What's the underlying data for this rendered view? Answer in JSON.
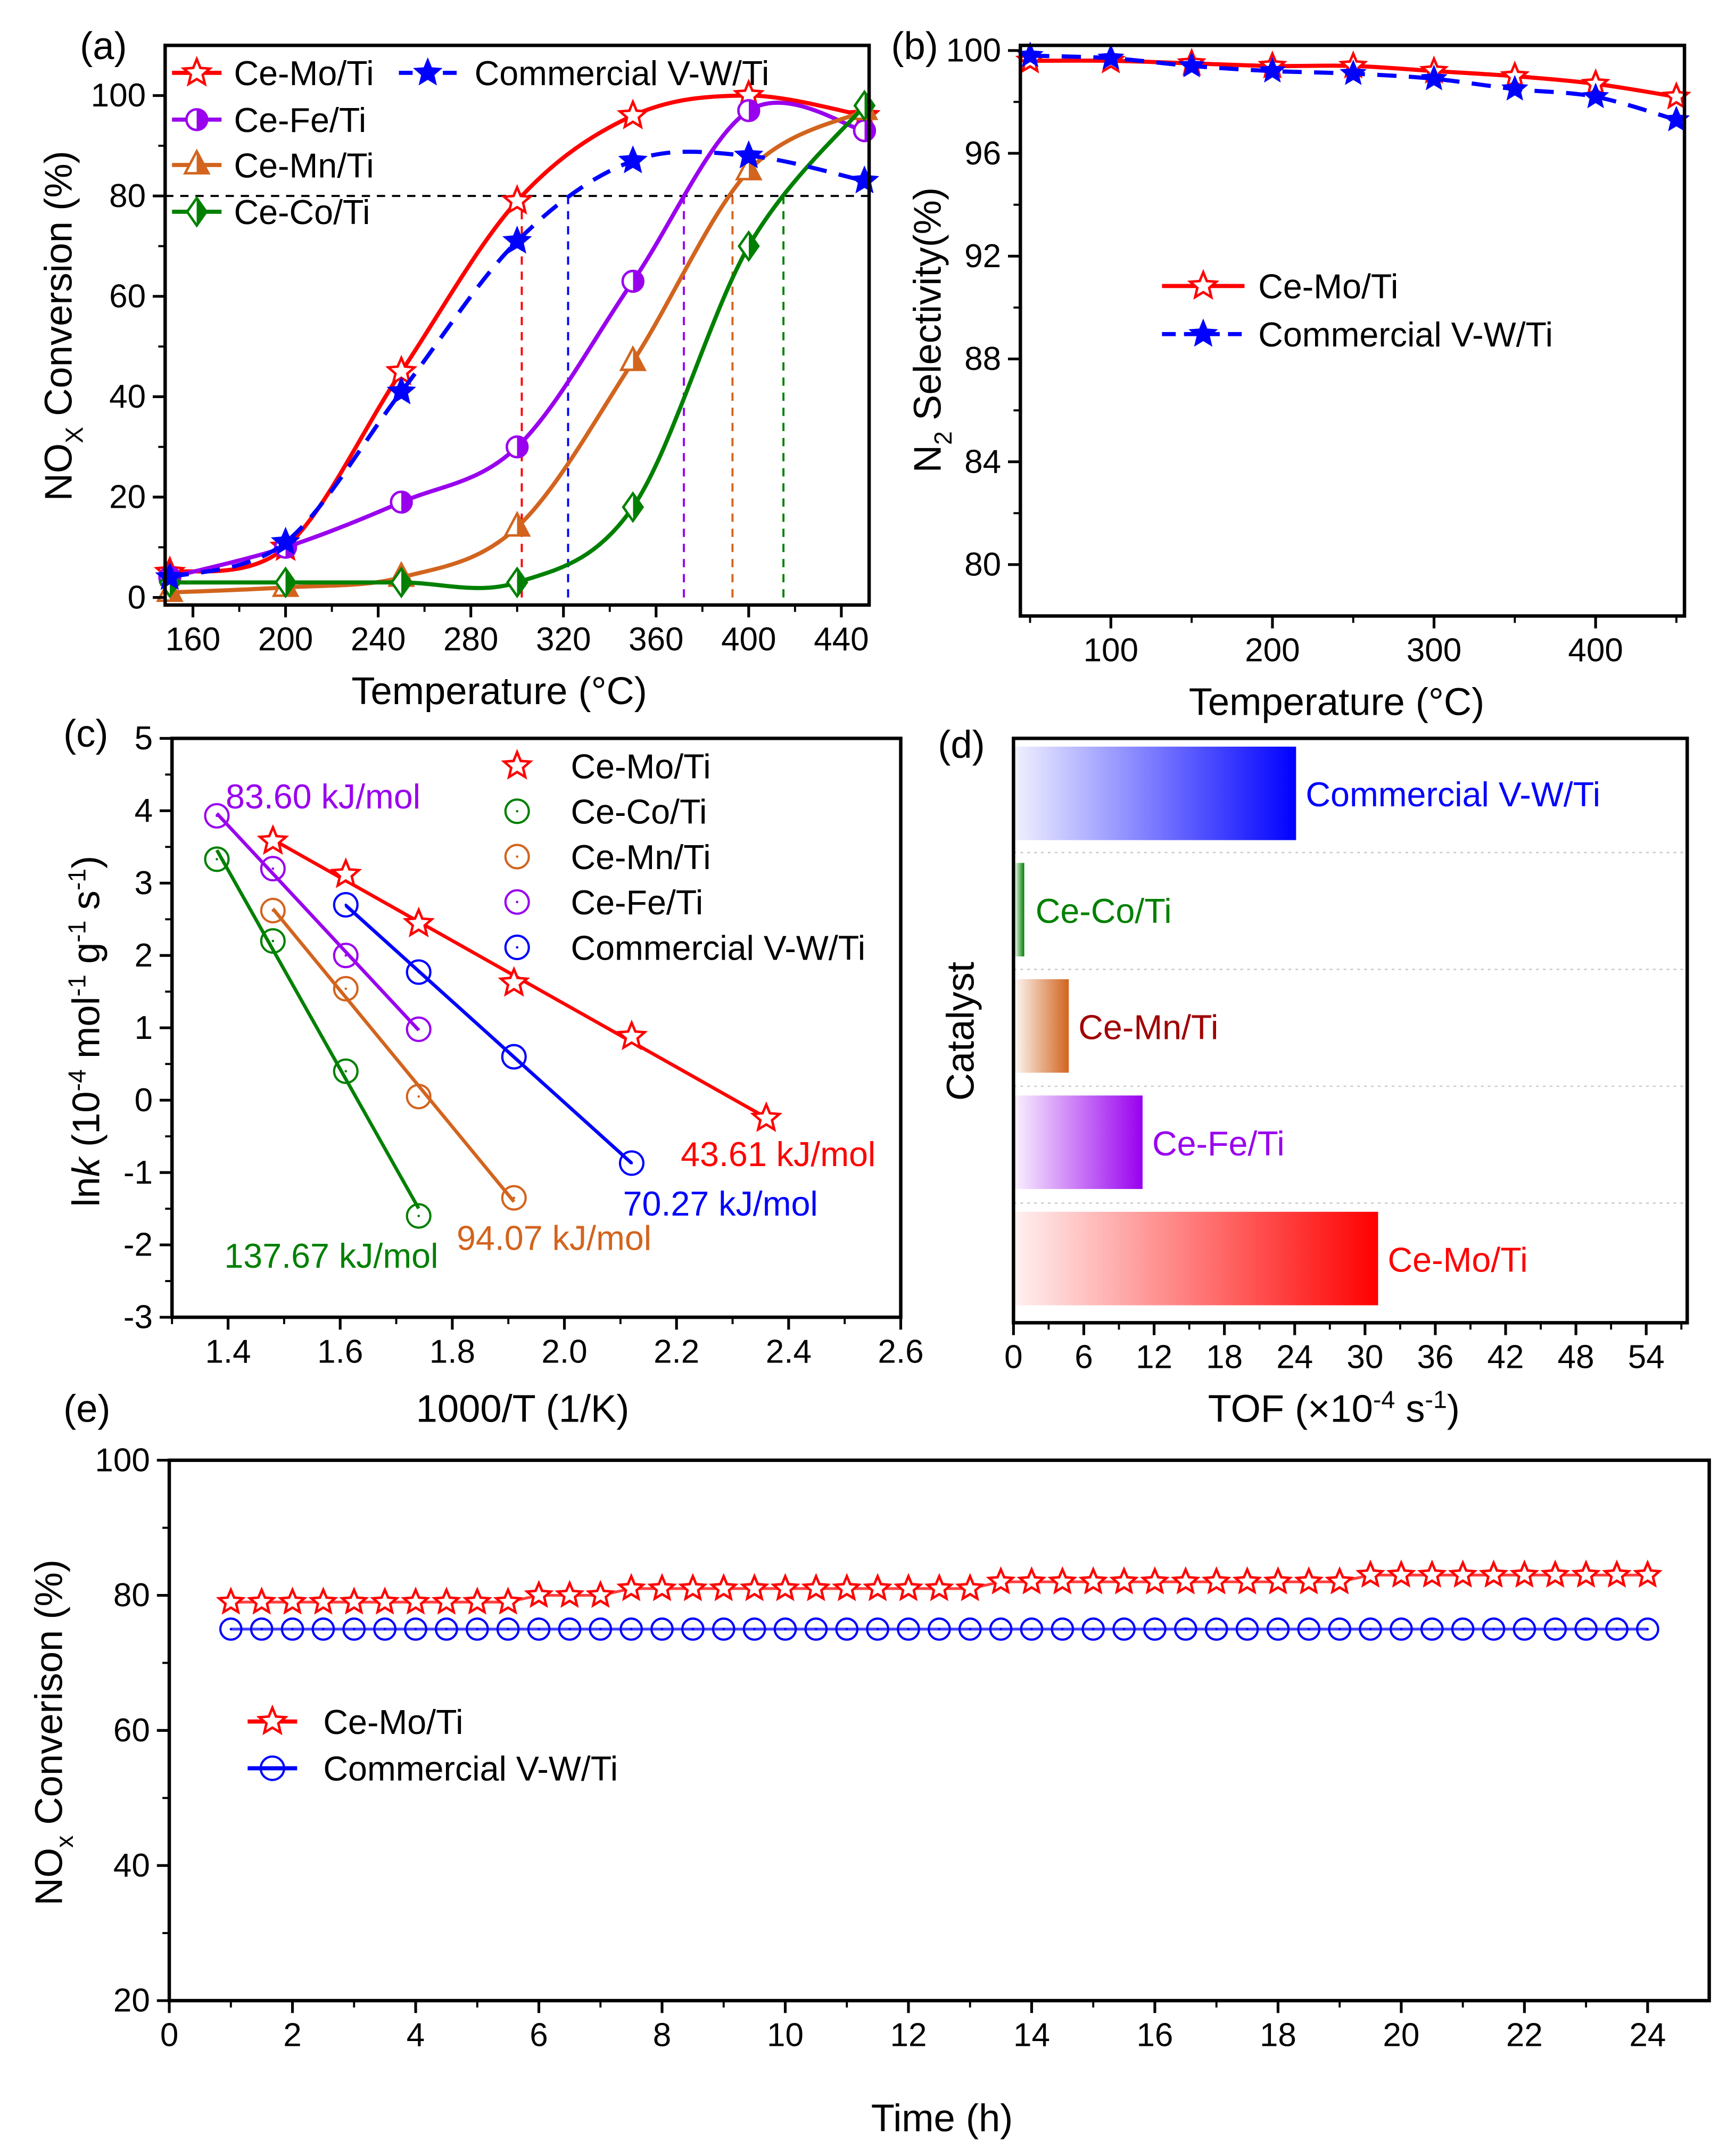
{
  "colors": {
    "mo": "#ff0000",
    "vw": "#0000ff",
    "fe": "#9900ee",
    "mn": "#d2641e",
    "co": "#008000"
  },
  "chart_data": [
    {
      "panel": "(a)",
      "type": "line",
      "xlabel": "Temperature (°C)",
      "ylabel_parts": [
        "NO",
        "X",
        " Conversion (%)"
      ],
      "xticks": [
        160,
        200,
        240,
        280,
        320,
        360,
        400,
        440
      ],
      "yticks": [
        0,
        20,
        40,
        60,
        80,
        100
      ],
      "xlim": [
        148,
        452
      ],
      "ylim": [
        -1.5,
        110
      ],
      "x": [
        150,
        200,
        250,
        300,
        350,
        400,
        450
      ],
      "reference_line": 80,
      "series": [
        {
          "key": "mo",
          "name": "Ce-Mo/Ti",
          "marker": "star-open",
          "values": [
            5,
            10,
            45,
            79,
            96,
            100,
            96
          ],
          "t80": 302
        },
        {
          "key": "fe",
          "name": "Ce-Fe/Ti",
          "marker": "circle-half",
          "values": [
            4,
            10,
            19,
            30,
            63,
            97,
            93
          ],
          "t80": 372
        },
        {
          "key": "mn",
          "name": "Ce-Mn/Ti",
          "marker": "triangle-half",
          "values": [
            1,
            2,
            4,
            14,
            47,
            85,
            97
          ],
          "t80": 393
        },
        {
          "key": "co",
          "name": "Ce-Co/Ti",
          "marker": "diamond-half",
          "values": [
            3,
            3,
            3,
            3,
            18,
            70,
            98
          ],
          "t80": 415
        },
        {
          "key": "vw",
          "name": "Commercial V-W/Ti",
          "marker": "star-filled",
          "dashed": true,
          "values": [
            4,
            11,
            41,
            71,
            87,
            88,
            83
          ],
          "t80": 322
        }
      ]
    },
    {
      "panel": "(b)",
      "type": "line",
      "xlabel": "Temperature (°C)",
      "ylabel_parts": [
        "N",
        "2",
        " Selectivity(%)"
      ],
      "xticks": [
        100,
        200,
        300,
        400
      ],
      "yticks": [
        80,
        84,
        88,
        92,
        96,
        100
      ],
      "xlim": [
        44,
        455
      ],
      "ylim": [
        78,
        100.2
      ],
      "x": [
        50,
        100,
        150,
        200,
        250,
        300,
        350,
        400,
        450
      ],
      "series": [
        {
          "key": "mo",
          "name": "Ce-Mo/Ti",
          "marker": "star-open",
          "values": [
            99.6,
            99.6,
            99.5,
            99.4,
            99.4,
            99.2,
            99.0,
            98.7,
            98.2
          ]
        },
        {
          "key": "vw",
          "name": "Commercial V-W/Ti",
          "marker": "star-filled",
          "dashed": true,
          "values": [
            99.8,
            99.7,
            99.4,
            99.2,
            99.1,
            98.9,
            98.5,
            98.2,
            97.3
          ]
        }
      ]
    },
    {
      "panel": "(c)",
      "type": "scatter",
      "xlabel": "1000/T (1/K)",
      "ylabel_parts": [
        "ln",
        "k",
        " (10",
        "-4",
        " mol",
        "-1",
        " g",
        "-1",
        " s",
        "-1",
        ")"
      ],
      "xticks": [
        "1.4",
        "1.6",
        "1.8",
        "2.0",
        "2.2",
        "2.4",
        "2.6"
      ],
      "yticks": [
        "5",
        "4",
        "3",
        "2",
        "1",
        "0",
        "-1",
        "-2",
        "-3"
      ],
      "xlim": [
        1.3,
        2.6
      ],
      "ylim": [
        -3,
        5
      ],
      "series": [
        {
          "key": "mo",
          "name": "Ce-Mo/Ti",
          "marker": "star-open",
          "points": [
            [
              1.48,
              3.58
            ],
            [
              1.61,
              3.12
            ],
            [
              1.74,
              2.44
            ],
            [
              1.91,
              1.62
            ],
            [
              2.12,
              0.88
            ],
            [
              2.36,
              -0.25
            ]
          ],
          "ea": "43.61 kJ/mol"
        },
        {
          "key": "co",
          "name": "Ce-Co/Ti",
          "marker": "circle-open",
          "points": [
            [
              1.38,
              3.33
            ],
            [
              1.48,
              2.2
            ],
            [
              1.61,
              0.4
            ],
            [
              1.74,
              -1.6
            ]
          ],
          "ea": "137.67 kJ/mol"
        },
        {
          "key": "mn",
          "name": "Ce-Mn/Ti",
          "marker": "circle-open",
          "points": [
            [
              1.48,
              2.62
            ],
            [
              1.61,
              1.54
            ],
            [
              1.74,
              0.05
            ],
            [
              1.91,
              -1.35
            ]
          ],
          "ea": "94.07 kJ/mol"
        },
        {
          "key": "fe",
          "name": "Ce-Fe/Ti",
          "marker": "circle-open",
          "points": [
            [
              1.38,
              3.93
            ],
            [
              1.48,
              3.2
            ],
            [
              1.61,
              2.0
            ],
            [
              1.74,
              0.98
            ]
          ],
          "ea": "83.60 kJ/mol"
        },
        {
          "key": "vw",
          "name": "Commercial V-W/Ti",
          "marker": "circle-open",
          "points": [
            [
              1.61,
              2.7
            ],
            [
              1.74,
              1.77
            ],
            [
              1.91,
              0.6
            ],
            [
              2.12,
              -0.87
            ]
          ],
          "ea": "70.27 kJ/mol"
        }
      ]
    },
    {
      "panel": "(d)",
      "type": "bar",
      "orientation": "horizontal",
      "ylabel": "Catalyst",
      "xlabel_parts": [
        "TOF (×10",
        "-4",
        " s",
        "-1",
        ")"
      ],
      "xticks": [
        0,
        6,
        12,
        18,
        24,
        30,
        36,
        42,
        48,
        54
      ],
      "xlim": [
        0,
        57.5
      ],
      "categories": [
        "Commercial V-W/Ti",
        "Ce-Co/Ti",
        "Ce-Mn/Ti",
        "Ce-Fe/Ti",
        "Ce-Mo/Ti"
      ],
      "keys": [
        "vw",
        "co",
        "mn",
        "fe",
        "mo"
      ],
      "label_colors": [
        "#0000ff",
        "#008000",
        "#a00000",
        "#9900ee",
        "#ff0000"
      ],
      "values": [
        24,
        0.8,
        4.6,
        10.9,
        31
      ]
    },
    {
      "panel": "(e)",
      "type": "line",
      "xlabel": "Time (h)",
      "ylabel_parts": [
        "NO",
        "x",
        " Converison (%)"
      ],
      "xticks": [
        0,
        2,
        4,
        6,
        8,
        10,
        12,
        14,
        16,
        18,
        20,
        22,
        24
      ],
      "yticks": [
        20,
        40,
        60,
        80,
        100
      ],
      "xlim": [
        0,
        25
      ],
      "ylim": [
        20,
        100
      ],
      "x": [
        1,
        1.5,
        2,
        2.5,
        3,
        3.5,
        4,
        4.5,
        5,
        5.5,
        6,
        6.5,
        7,
        7.5,
        8,
        8.5,
        9,
        9.5,
        10,
        10.5,
        11,
        11.5,
        12,
        12.5,
        13,
        13.5,
        14,
        14.5,
        15,
        15.5,
        16,
        16.5,
        17,
        17.5,
        18,
        18.5,
        19,
        19.5,
        20,
        20.5,
        21,
        21.5,
        22,
        22.5,
        23,
        23.5,
        24
      ],
      "series": [
        {
          "key": "mo",
          "name": "Ce-Mo/Ti",
          "marker": "star-open",
          "values": [
            79,
            79,
            79,
            79,
            79,
            79,
            79,
            79,
            79,
            79,
            80,
            80,
            80,
            81,
            81,
            81,
            81,
            81,
            81,
            81,
            81,
            81,
            81,
            81,
            81,
            82,
            82,
            82,
            82,
            82,
            82,
            82,
            82,
            82,
            82,
            82,
            82,
            83,
            83,
            83,
            83,
            83,
            83,
            83,
            83,
            83,
            83
          ]
        },
        {
          "key": "vw",
          "name": "Commercial V-W/Ti",
          "marker": "circle-open",
          "values": [
            75,
            75,
            75,
            75,
            75,
            75,
            75,
            75,
            75,
            75,
            75,
            75,
            75,
            75,
            75,
            75,
            75,
            75,
            75,
            75,
            75,
            75,
            75,
            75,
            75,
            75,
            75,
            75,
            75,
            75,
            75,
            75,
            75,
            75,
            75,
            75,
            75,
            75,
            75,
            75,
            75,
            75,
            75,
            75,
            75,
            75,
            75
          ]
        }
      ]
    }
  ]
}
